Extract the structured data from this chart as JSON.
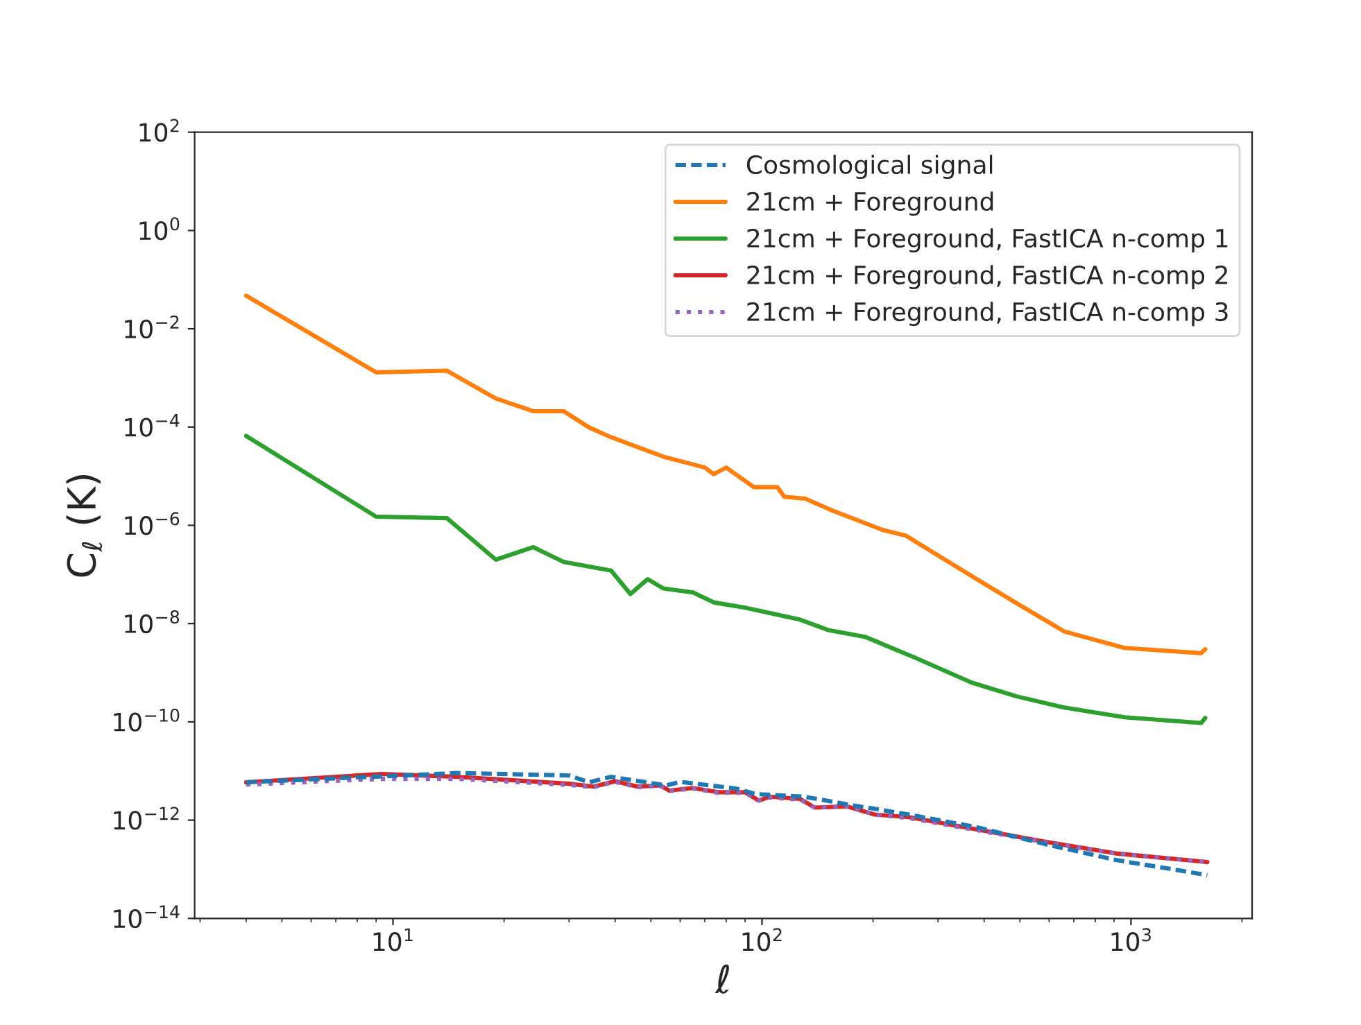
{
  "chart_data": {
    "type": "line",
    "xlabel": "ℓ",
    "ylabel": "C$_{ℓ}$ (K)",
    "log": "xy",
    "legend": "top right",
    "grid": false,
    "xlim": [
      2.9,
      2130
    ],
    "ylim": [
      1e-14,
      100
    ],
    "xticks": [
      {
        "value": 10,
        "label": "10$^{1}$"
      },
      {
        "value": 100,
        "label": "10$^{2}$"
      },
      {
        "value": 1000,
        "label": "10$^{3}$"
      }
    ],
    "yticks": [
      {
        "value": 1e-14,
        "label": "10$^{−14}$"
      },
      {
        "value": 1e-12,
        "label": "10$^{−12}$"
      },
      {
        "value": 1e-10,
        "label": "10$^{−10}$"
      },
      {
        "value": 1e-08,
        "label": "10$^{−8}$"
      },
      {
        "value": 1e-06,
        "label": "10$^{−6}$"
      },
      {
        "value": 0.0001,
        "label": "10$^{−4}$"
      },
      {
        "value": 0.01,
        "label": "10$^{−2}$"
      },
      {
        "value": 1,
        "label": "10$^{0}$"
      },
      {
        "value": 100,
        "label": "10$^{2}$"
      }
    ],
    "series": [
      {
        "name": "Cosmological signal",
        "color": "#1f77b4",
        "line_style": "dashed",
        "x": [
          4,
          15,
          30,
          34,
          39,
          55,
          60,
          85,
          96,
          130,
          170,
          250,
          385,
          590,
          910,
          1610
        ],
        "values": [
          5.9e-12,
          9.1e-12,
          8.1e-12,
          5.9e-12,
          7.6e-12,
          5.1e-12,
          6e-12,
          4.4e-12,
          3.4e-12,
          3e-12,
          2.1e-12,
          1.3e-12,
          7.1e-13,
          3.2e-13,
          1.55e-13,
          7.6e-14
        ]
      },
      {
        "name": "21cm + Foreground",
        "color": "#ff7f0e",
        "line_style": "solid",
        "x": [
          4,
          9,
          14,
          19,
          24,
          29,
          34,
          39,
          54,
          70,
          74,
          80,
          95,
          110,
          115,
          131,
          155,
          213,
          245,
          370,
          490,
          660,
          960,
          1550,
          1590
        ],
        "values": [
          0.047,
          0.0013,
          0.0014,
          0.00038,
          0.00021,
          0.00021,
          9.8e-05,
          6.2e-05,
          2.5e-05,
          1.5e-05,
          1.1e-05,
          1.5e-05,
          6e-06,
          6e-06,
          3.8e-06,
          3.5e-06,
          2e-06,
          8e-07,
          6.2e-07,
          9.3e-08,
          2.6e-08,
          6.9e-09,
          3.2e-09,
          2.5e-09,
          3e-09
        ]
      },
      {
        "name": "21cm + Foreground, FastICA n-comp 1",
        "color": "#2ca02c",
        "line_style": "solid",
        "x": [
          4,
          9,
          14,
          19,
          24,
          29,
          39,
          44,
          49,
          54,
          65,
          74,
          90,
          127,
          151,
          190,
          261,
          370,
          490,
          660,
          960,
          1550,
          1590
        ],
        "values": [
          6.6e-05,
          1.5e-06,
          1.4e-06,
          2e-07,
          3.6e-07,
          1.8e-07,
          1.2e-07,
          4e-08,
          8e-08,
          5.2e-08,
          4.3e-08,
          2.7e-08,
          2.1e-08,
          1.2e-08,
          7.4e-09,
          5.4e-09,
          2e-09,
          6.3e-10,
          3.3e-10,
          1.95e-10,
          1.24e-10,
          9.5e-11,
          1.2e-10
        ]
      },
      {
        "name": "21cm + Foreground, FastICA n-comp 2",
        "color": "#d62728",
        "line_style": "solid",
        "x": [
          4,
          9.3,
          15,
          30,
          35,
          40,
          46,
          53,
          56,
          65,
          76,
          90,
          98,
          105,
          127,
          139,
          170,
          202,
          250,
          385,
          590,
          910,
          1610
        ],
        "values": [
          5.9e-12,
          8.7e-12,
          7.6e-12,
          5.5e-12,
          4.8e-12,
          6.2e-12,
          4.8e-12,
          5.1e-12,
          4e-12,
          4.5e-12,
          3.7e-12,
          3.7e-12,
          2.5e-12,
          3e-12,
          2.7e-12,
          1.8e-12,
          1.9e-12,
          1.3e-12,
          1.15e-12,
          6.4e-13,
          3.6e-13,
          2.1e-13,
          1.4e-13
        ]
      },
      {
        "name": "21cm + Foreground, FastICA n-comp 3",
        "color": "#9467bd",
        "line_style": "dotted",
        "x": [
          4,
          9.3,
          15,
          30,
          35,
          40,
          46,
          53,
          56,
          65,
          76,
          90,
          98,
          105,
          127,
          139,
          170,
          202,
          250,
          385,
          590,
          910,
          1610
        ],
        "values": [
          5.3e-12,
          6.9e-12,
          6.9e-12,
          5.2e-12,
          4.7e-12,
          6e-12,
          4.7e-12,
          5e-12,
          3.9e-12,
          4.4e-12,
          3.6e-12,
          3.6e-12,
          2.5e-12,
          2.9e-12,
          2.6e-12,
          1.8e-12,
          1.9e-12,
          1.3e-12,
          1.1e-12,
          6.2e-13,
          3.5e-13,
          2.1e-13,
          1.4e-13
        ]
      }
    ]
  }
}
